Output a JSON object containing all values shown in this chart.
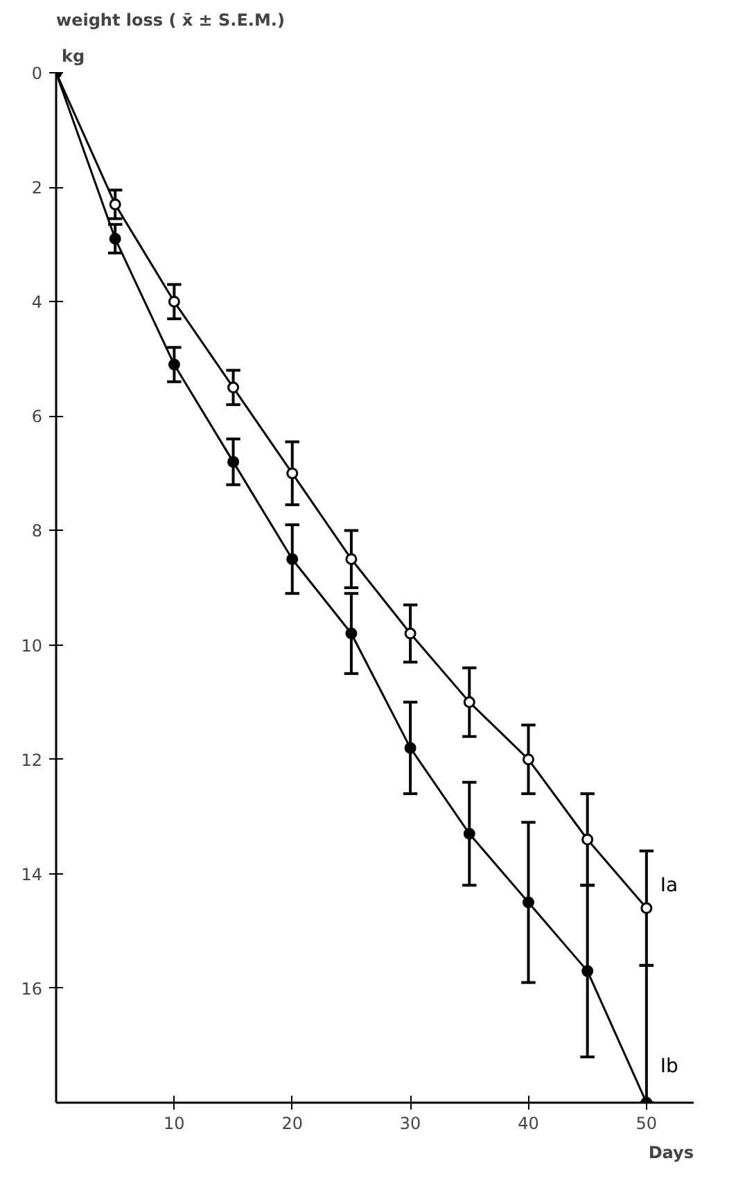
{
  "chart_data": {
    "type": "line",
    "title": "weight loss  ( x̄ ± S.E.M.)",
    "ylabel": "kg",
    "xlabel": "Days",
    "x": [
      0,
      5,
      10,
      15,
      20,
      25,
      30,
      35,
      40,
      45,
      50
    ],
    "series": [
      {
        "name": "Ia",
        "color": "#000000",
        "values": [
          0,
          2.3,
          4.0,
          5.5,
          7.0,
          8.5,
          9.8,
          11.0,
          12.0,
          13.4,
          14.6
        ],
        "errors": [
          null,
          0.25,
          0.3,
          0.3,
          0.55,
          0.5,
          0.5,
          0.6,
          0.6,
          0.8,
          1.0
        ]
      },
      {
        "name": "Ib",
        "color": "#000000",
        "values": [
          0,
          2.9,
          5.1,
          6.8,
          8.5,
          9.8,
          11.8,
          13.3,
          14.5,
          15.7,
          18.0
        ],
        "errors": [
          null,
          0.25,
          0.3,
          0.4,
          0.6,
          0.7,
          0.8,
          0.9,
          1.4,
          1.5,
          [
            15.6,
            18.0
          ]
        ]
      }
    ],
    "xlim": [
      0,
      54
    ],
    "ylim": [
      18,
      0
    ],
    "xticks": [
      10,
      20,
      30,
      40,
      50
    ],
    "yticks": [
      0,
      2,
      4,
      6,
      8,
      10,
      12,
      14,
      16
    ],
    "grid": false,
    "marker": "circle",
    "line_style": "solid"
  }
}
